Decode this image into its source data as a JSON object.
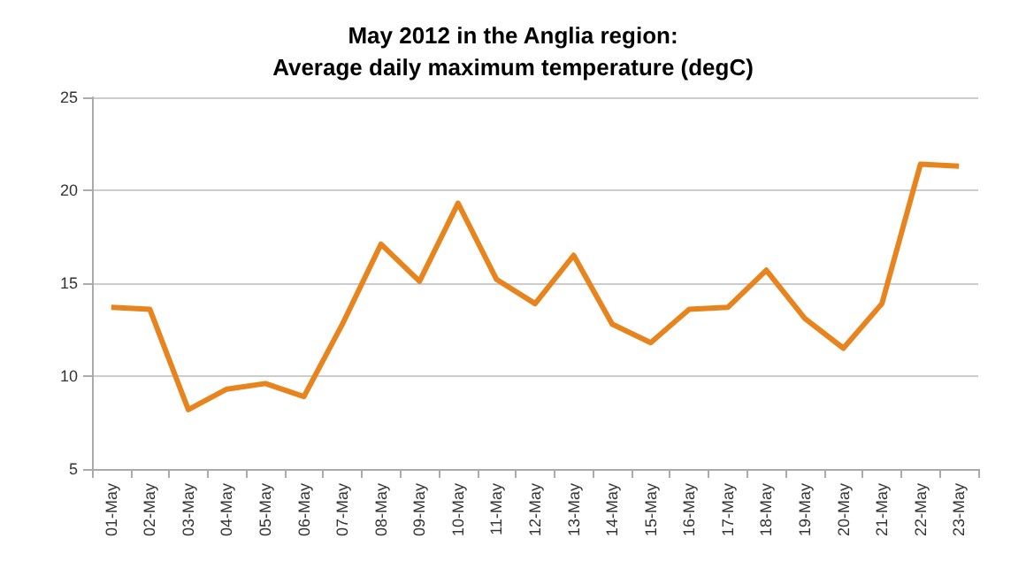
{
  "chart_data": {
    "type": "line",
    "title": "May 2012 in the Anglia region:\nAverage daily maximum temperature (degC)",
    "categories": [
      "01-May",
      "02-May",
      "03-May",
      "04-May",
      "05-May",
      "06-May",
      "07-May",
      "08-May",
      "09-May",
      "10-May",
      "11-May",
      "12-May",
      "13-May",
      "14-May",
      "15-May",
      "16-May",
      "17-May",
      "18-May",
      "19-May",
      "20-May",
      "21-May",
      "22-May",
      "23-May"
    ],
    "series": [
      {
        "color": "#e8841e",
        "values": [
          13.7,
          13.6,
          8.2,
          9.3,
          9.6,
          8.9,
          12.8,
          17.1,
          15.1,
          19.3,
          15.2,
          13.9,
          16.5,
          12.8,
          11.8,
          13.6,
          13.7,
          15.7,
          13.1,
          11.5,
          13.9,
          21.4,
          21.3
        ]
      }
    ],
    "ylim": [
      5,
      25
    ],
    "yticks": [
      5,
      10,
      15,
      20,
      25
    ],
    "grid": "y",
    "marker": "none",
    "line_style": "solid"
  }
}
